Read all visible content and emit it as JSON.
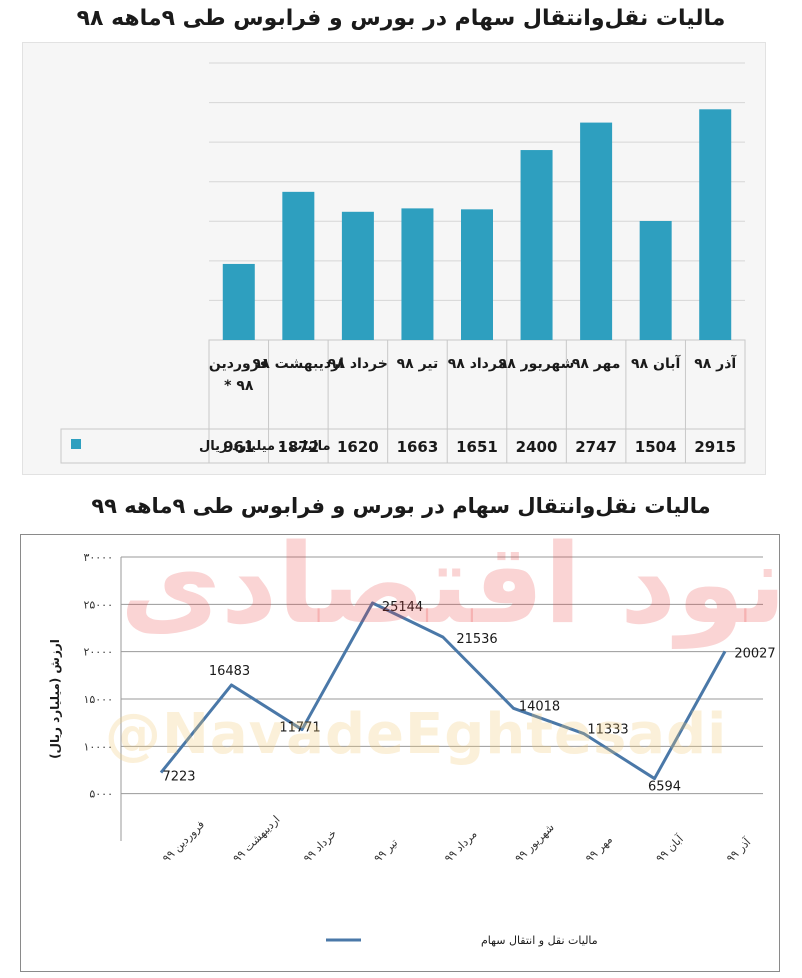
{
  "chart_data": [
    {
      "type": "bar",
      "title": "مالیات نقل‌وانتقال سهام در بورس و فرابوس طی ۹ماهه ۹۸",
      "categories": [
        "فروردین ۹۸ *",
        "اردیبهشت ۹۸",
        "خرداد ۹۸",
        "تیر ۹۸",
        "مرداد ۹۸",
        "شهریور ۹۸",
        "مهر ۹۸",
        "آبان ۹۸",
        "آذر ۹۸"
      ],
      "series": [
        {
          "name": "مالیات - میلیارد ریال",
          "values": [
            961,
            1872,
            1620,
            1663,
            1651,
            2400,
            2747,
            1504,
            2915
          ]
        }
      ],
      "value_labels": [
        "961",
        "1872",
        "1620",
        "1663",
        "1651",
        "2400",
        "2747",
        "1504",
        "2915"
      ],
      "ylim": [
        0,
        3500
      ],
      "grid": true,
      "legend": "bottom-right (data table)",
      "bar_color": "#2e9fbf"
    },
    {
      "type": "line",
      "title": "مالیات نقل‌وانتقال سهام در بورس و فرابوس طی ۹ماهه ۹۹",
      "categories": [
        "فروردین ۹۹",
        "اردیبهشت ۹۹",
        "خرداد ۹۹",
        "تیر ۹۹",
        "مرداد ۹۹",
        "شهریور ۹۹",
        "مهر ۹۹",
        "آبان ۹۹",
        "آذر ۹۹"
      ],
      "series": [
        {
          "name": "مالیات نقل و انتقال سهام",
          "values": [
            7223,
            16483,
            11771,
            25144,
            21536,
            14018,
            11333,
            6594,
            20027
          ]
        }
      ],
      "value_labels": [
        "7223",
        "16483",
        "11771",
        "25144",
        "21536",
        "14018",
        "11333",
        "6594",
        "20027"
      ],
      "ylabel": "ارزش (میلیارد ریال)",
      "ylim": [
        0,
        30000
      ],
      "yticks": [
        5000,
        10000,
        15000,
        20000,
        25000,
        30000
      ],
      "ytick_labels": [
        "۵۰۰۰",
        "۱۰۰۰۰",
        "۱۵۰۰۰",
        "۲۰۰۰۰",
        "۲۵۰۰۰",
        "۳۰۰۰۰"
      ],
      "grid": true,
      "legend": "bottom",
      "line_color": "#4a78a8"
    }
  ],
  "watermarks": {
    "text": "نود اقتصادی",
    "handle": "@NavadeEghtesadi"
  }
}
